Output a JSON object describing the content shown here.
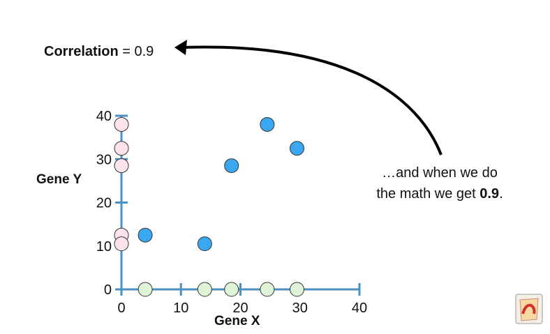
{
  "correlation": {
    "label": "Correlation",
    "equals": "=",
    "value": "0.9"
  },
  "annotation": {
    "line1": "…and when we do",
    "line2_prefix": "the math we get ",
    "line2_value": "0.9",
    "line2_suffix": "."
  },
  "chart_data": {
    "type": "scatter",
    "xlabel": "Gene X",
    "ylabel": "Gene Y",
    "xlim": [
      0,
      40
    ],
    "ylim": [
      0,
      40
    ],
    "xticks": [
      0,
      10,
      20,
      30,
      40
    ],
    "yticks": [
      0,
      10,
      20,
      30,
      40
    ],
    "grid": false,
    "axis_color": "#4a90c2",
    "points_main": {
      "color": "#3aa8f0",
      "x": [
        4,
        14,
        18.5,
        24.5,
        29.5
      ],
      "y": [
        12.5,
        10.5,
        28.5,
        38,
        32.5
      ]
    },
    "points_y_only": {
      "color": "#fde3ec",
      "x": [
        0,
        0,
        0,
        0,
        0
      ],
      "y": [
        38,
        32.5,
        28.5,
        12.5,
        10.5
      ]
    },
    "points_x_only": {
      "color": "#dff3d6",
      "x": [
        4,
        14,
        18.5,
        24.5,
        29.5
      ],
      "y": [
        0,
        0,
        0,
        0,
        0
      ]
    }
  }
}
